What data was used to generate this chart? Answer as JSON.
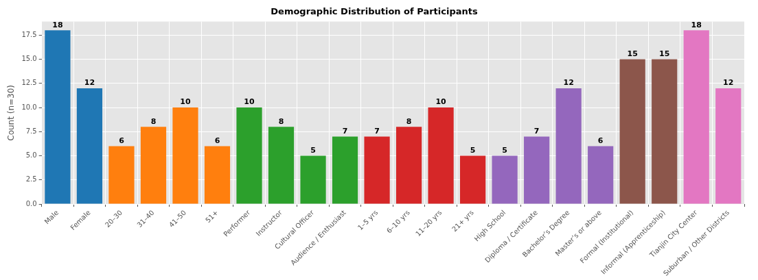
{
  "chart_data": {
    "type": "bar",
    "title": "Demographic Distribution of Participants",
    "ylabel": "Count (n=30)",
    "categories": [
      "Male",
      "Female",
      "20–30",
      "31–40",
      "41–50",
      "51+",
      "Performer",
      "Instructor",
      "Cultural Officer",
      "Audience / Enthusiast",
      "1–5 yrs",
      "6–10 yrs",
      "11–20 yrs",
      "21+ yrs",
      "High School",
      "Diploma / Certificate",
      "Bachelor’s Degree",
      "Master’s or above",
      "Formal (Institutional)",
      "Informal (Apprenticeship)",
      "Tianjin City Center",
      "Suburban / Other Districts"
    ],
    "values": [
      18,
      12,
      6,
      8,
      10,
      6,
      10,
      8,
      5,
      7,
      7,
      8,
      10,
      5,
      5,
      7,
      12,
      6,
      15,
      15,
      18,
      12
    ],
    "colors": [
      "#1f77b4",
      "#1f77b4",
      "#ff7f0e",
      "#ff7f0e",
      "#ff7f0e",
      "#ff7f0e",
      "#2ca02c",
      "#2ca02c",
      "#2ca02c",
      "#2ca02c",
      "#d62728",
      "#d62728",
      "#d62728",
      "#d62728",
      "#9467bd",
      "#9467bd",
      "#9467bd",
      "#9467bd",
      "#8c564b",
      "#8c564b",
      "#e377c2",
      "#e377c2"
    ],
    "ylim": [
      0,
      18.9
    ],
    "yticks": [
      {
        "value": 0,
        "label": "0.0"
      },
      {
        "value": 2.5,
        "label": "2.5"
      },
      {
        "value": 5,
        "label": "5.0"
      },
      {
        "value": 7.5,
        "label": "7.5"
      },
      {
        "value": 10,
        "label": "10.0"
      },
      {
        "value": 12.5,
        "label": "12.5"
      },
      {
        "value": 15,
        "label": "15.0"
      },
      {
        "value": 17.5,
        "label": "17.5"
      }
    ],
    "grid": true,
    "data_labels": true
  }
}
